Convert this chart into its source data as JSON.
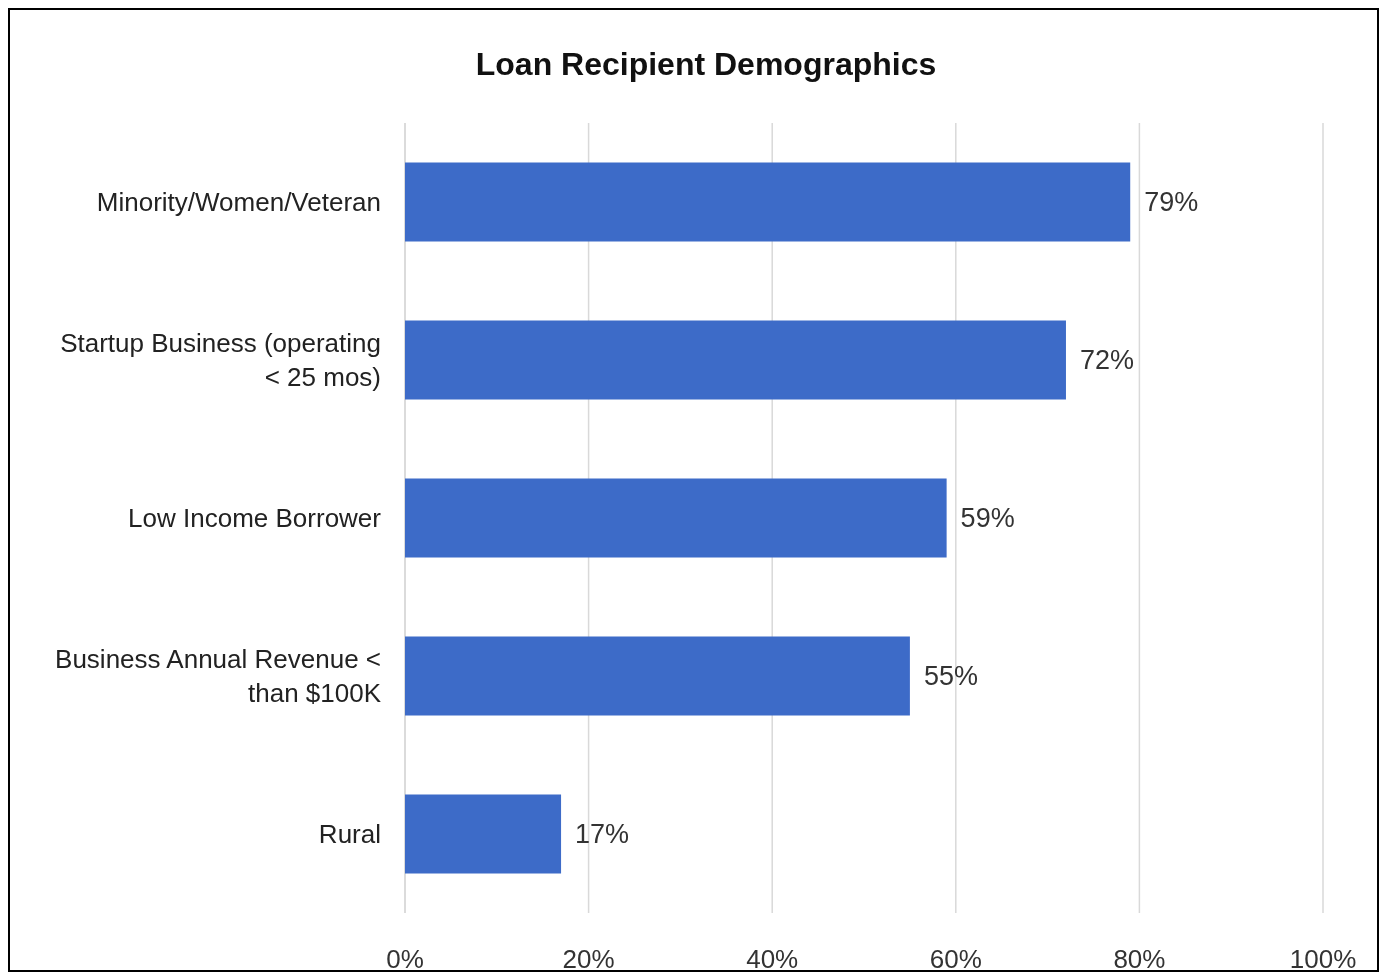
{
  "chart_data": {
    "type": "bar",
    "orientation": "horizontal",
    "title": "Loan Recipient Demographics",
    "categories": [
      "Minority/Women/Veteran",
      "Startup Business (operating < 25 mos)",
      "Low Income Borrower",
      "Business Annual Revenue < than $100K",
      "Rural"
    ],
    "values": [
      79,
      72,
      59,
      55,
      17
    ],
    "value_labels": [
      "79%",
      "72%",
      "59%",
      "55%",
      "17%"
    ],
    "color": "#3d6bc8",
    "xlim": [
      0,
      100
    ],
    "xticks": [
      {
        "value": 0,
        "label": "0%"
      },
      {
        "value": 20,
        "label": "20%"
      },
      {
        "value": 40,
        "label": "40%"
      },
      {
        "value": 60,
        "label": "60%"
      },
      {
        "value": 80,
        "label": "80%"
      },
      {
        "value": 100,
        "label": "100%"
      }
    ],
    "grid": "x"
  }
}
